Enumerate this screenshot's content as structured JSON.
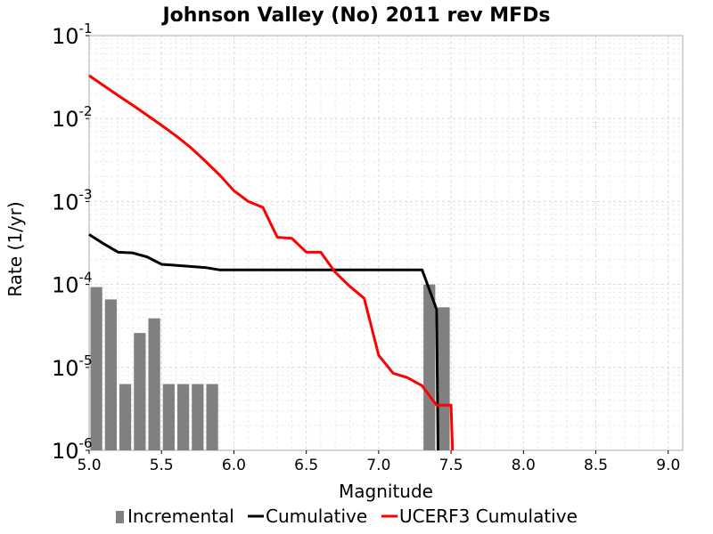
{
  "chart_data": {
    "type": "bar+line",
    "title": "Johnson Valley (No) 2011 rev MFDs",
    "xlabel": "Magnitude",
    "ylabel": "Rate (1/yr)",
    "xlim": [
      5.0,
      9.1
    ],
    "ylim": [
      1e-06,
      0.1
    ],
    "yscale": "log",
    "grid": true,
    "legend_placement": "bottom",
    "x_ticks": [
      "5.0",
      "5.5",
      "6.0",
      "6.5",
      "7.0",
      "7.5",
      "8.0",
      "8.5",
      "9.0"
    ],
    "y_ticks": [
      {
        "base": "10",
        "exp": "-6",
        "value": 1e-06
      },
      {
        "base": "10",
        "exp": "-5",
        "value": 1e-05
      },
      {
        "base": "10",
        "exp": "-4",
        "value": 0.0001
      },
      {
        "base": "10",
        "exp": "-3",
        "value": 0.001
      },
      {
        "base": "10",
        "exp": "-2",
        "value": 0.01
      },
      {
        "base": "10",
        "exp": "-1",
        "value": 0.1
      }
    ],
    "series": [
      {
        "name": "Incremental",
        "kind": "bar",
        "color": "#808080",
        "bin_width": 0.1,
        "x": [
          5.05,
          5.15,
          5.25,
          5.35,
          5.45,
          5.55,
          5.65,
          5.75,
          5.85,
          7.35,
          7.45
        ],
        "y": [
          9.3e-05,
          6.6e-05,
          6.3e-06,
          2.6e-05,
          3.9e-05,
          6.3e-06,
          6.3e-06,
          6.3e-06,
          6.3e-06,
          0.0001,
          5.3e-05
        ]
      },
      {
        "name": "Cumulative",
        "kind": "line",
        "color": "#000000",
        "x": [
          5.0,
          5.1,
          5.2,
          5.3,
          5.4,
          5.5,
          5.6,
          5.7,
          5.8,
          5.9,
          6.0,
          7.2,
          7.3,
          7.4,
          7.41
        ],
        "y": [
          0.0004,
          0.00031,
          0.000245,
          0.00024,
          0.000215,
          0.000175,
          0.00017,
          0.000165,
          0.00016,
          0.00015,
          0.00015,
          0.00015,
          0.00015,
          5e-05,
          1e-06
        ]
      },
      {
        "name": "UCERF3 Cumulative",
        "kind": "line",
        "color": "#ff0000",
        "x": [
          5.0,
          5.1,
          5.2,
          5.3,
          5.4,
          5.5,
          5.6,
          5.7,
          5.8,
          5.9,
          6.0,
          6.1,
          6.2,
          6.3,
          6.4,
          6.5,
          6.6,
          6.7,
          6.8,
          6.9,
          7.0,
          7.1,
          7.2,
          7.3,
          7.4,
          7.5,
          7.51
        ],
        "y": [
          0.033,
          0.025,
          0.019,
          0.0145,
          0.011,
          0.0083,
          0.0062,
          0.0045,
          0.0031,
          0.0021,
          0.00135,
          0.001,
          0.00085,
          0.00037,
          0.00036,
          0.000245,
          0.000245,
          0.00014,
          9.5e-05,
          6.8e-05,
          1.4e-05,
          8.5e-06,
          7.5e-06,
          6e-06,
          3.5e-06,
          3.5e-06,
          1e-06
        ]
      }
    ]
  }
}
